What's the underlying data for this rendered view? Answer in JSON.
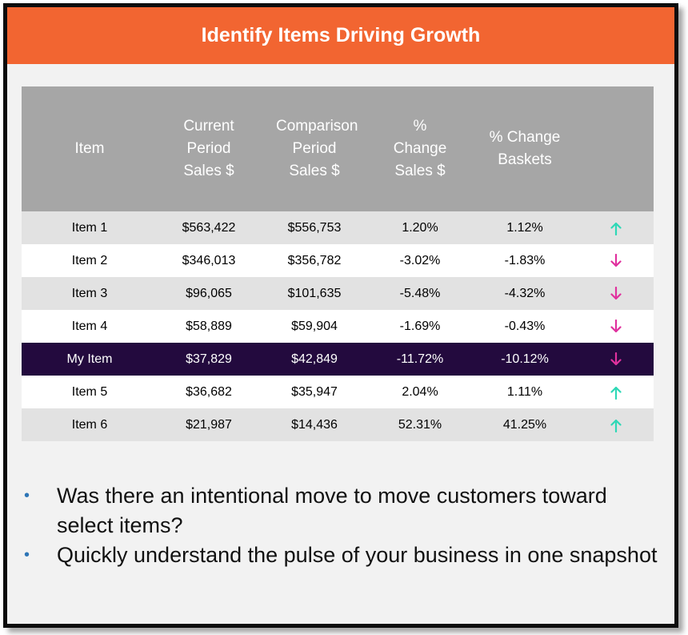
{
  "header": {
    "title": "Identify Items Driving Growth"
  },
  "table": {
    "columns": [
      "Item",
      "Current Period Sales $",
      "Comparison Period Sales $",
      "% Change Sales $",
      "% Change Baskets"
    ],
    "rows": [
      {
        "item": "Item 1",
        "current": "$563,422",
        "comparison": "$556,753",
        "change_sales": "1.20%",
        "change_baskets": "1.12%",
        "trend": "up"
      },
      {
        "item": "Item 2",
        "current": "$346,013",
        "comparison": "$356,782",
        "change_sales": "-3.02%",
        "change_baskets": "-1.83%",
        "trend": "down"
      },
      {
        "item": "Item 3",
        "current": "$96,065",
        "comparison": "$101,635",
        "change_sales": "-5.48%",
        "change_baskets": "-4.32%",
        "trend": "down"
      },
      {
        "item": "Item 4",
        "current": "$58,889",
        "comparison": "$59,904",
        "change_sales": "-1.69%",
        "change_baskets": "-0.43%",
        "trend": "down"
      },
      {
        "item": "My Item",
        "current": "$37,829",
        "comparison": "$42,849",
        "change_sales": "-11.72%",
        "change_baskets": "-10.12%",
        "trend": "down",
        "highlight": true
      },
      {
        "item": "Item 5",
        "current": "$36,682",
        "comparison": "$35,947",
        "change_sales": "2.04%",
        "change_baskets": "1.11%",
        "trend": "up"
      },
      {
        "item": "Item 6",
        "current": "$21,987",
        "comparison": "$14,436",
        "change_sales": "52.31%",
        "change_baskets": "41.25%",
        "trend": "up"
      }
    ]
  },
  "bullets": [
    "Was there an intentional move to move customers toward select items?",
    "Quickly understand the pulse of your business in one snapshot"
  ],
  "colors": {
    "header_bg": "#f26531",
    "table_header_bg": "#a6a6a6",
    "highlight_row_bg": "#230a3e",
    "up_arrow": "#2ed8b6",
    "down_arrow": "#e0319e",
    "bullet": "#2e75b6"
  },
  "icons": {
    "up": "arrow-up-icon",
    "down": "arrow-down-icon",
    "bullet": "bullet-dot-icon"
  }
}
